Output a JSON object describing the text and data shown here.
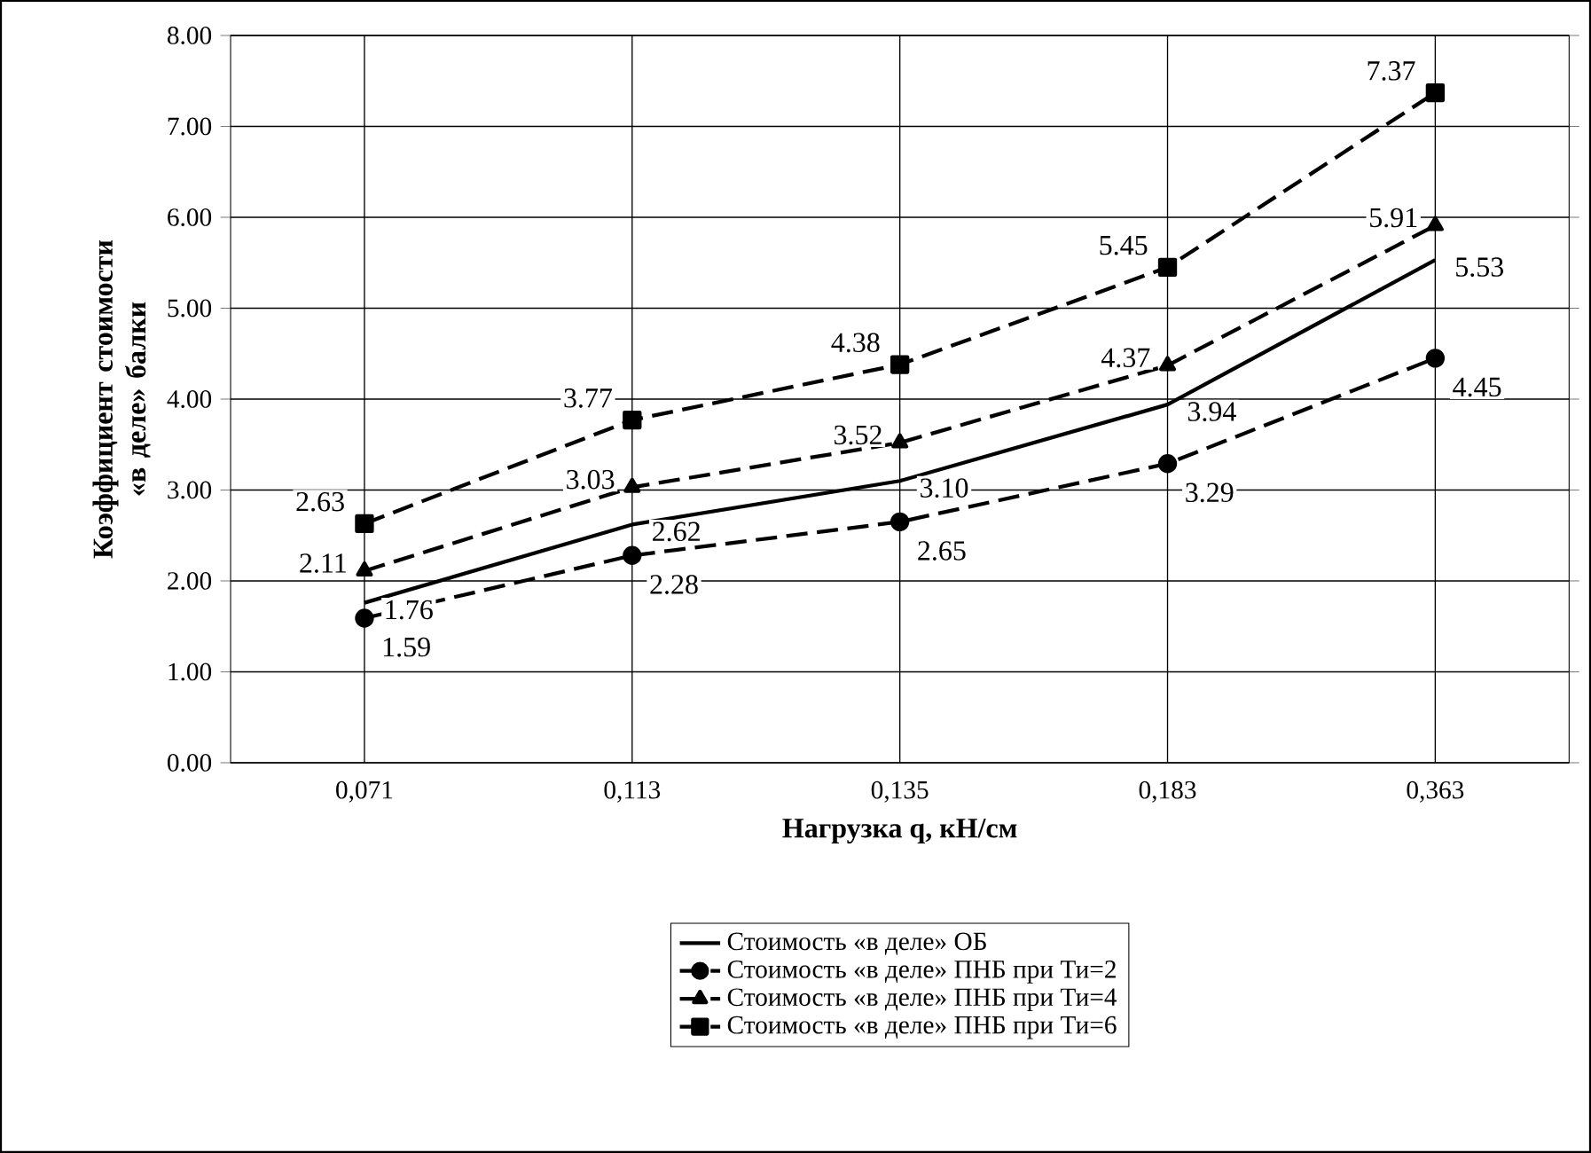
{
  "chart_data": {
    "type": "line",
    "xlabel": "Нагрузка q, кН/см",
    "ylabel": "Коэффициент стоимости «в деле» балки",
    "categories": [
      "0,071",
      "0,113",
      "0,135",
      "0,183",
      "0,363"
    ],
    "ylim": [
      0,
      8
    ],
    "yticks": [
      {
        "value": 0,
        "label": "0.00"
      },
      {
        "value": 1,
        "label": "1.00"
      },
      {
        "value": 2,
        "label": "2.00"
      },
      {
        "value": 3,
        "label": "3.00"
      },
      {
        "value": 4,
        "label": "4.00"
      },
      {
        "value": 5,
        "label": "5.00"
      },
      {
        "value": 6,
        "label": "6.00"
      },
      {
        "value": 7,
        "label": "7.00"
      },
      {
        "value": 8,
        "label": "8.00"
      }
    ],
    "grid": true,
    "legend": "bottom",
    "series": [
      {
        "name": "Стоимость «в деле» ОБ",
        "color": "#000000",
        "marker": "none",
        "line_style": "solid",
        "values": [
          1.76,
          2.62,
          3.1,
          3.94,
          5.53
        ],
        "value_labels": [
          "1.76",
          "2.62",
          "3.10",
          "3.94",
          "5.53"
        ]
      },
      {
        "name": "Стоимость «в деле» ПНБ при Ти=2",
        "color": "#000000",
        "marker": "circle",
        "line_style": "dashed",
        "values": [
          1.59,
          2.28,
          2.65,
          3.29,
          4.45
        ],
        "value_labels": [
          "1.59",
          "2.28",
          "2.65",
          "3.29",
          "4.45"
        ]
      },
      {
        "name": "Стоимость «в деле» ПНБ при Ти=4",
        "color": "#000000",
        "marker": "triangle",
        "line_style": "dashed",
        "values": [
          2.11,
          3.03,
          3.52,
          4.37,
          5.91
        ],
        "value_labels": [
          "2.11",
          "3.03",
          "3.52",
          "4.37",
          "5.91"
        ]
      },
      {
        "name": "Стоимость «в деле» ПНБ при Ти=6",
        "color": "#000000",
        "marker": "square",
        "line_style": "dashed",
        "values": [
          2.63,
          3.77,
          4.38,
          5.45,
          7.37
        ],
        "value_labels": [
          "2.63",
          "3.77",
          "4.38",
          "5.45",
          "7.37"
        ]
      }
    ]
  }
}
